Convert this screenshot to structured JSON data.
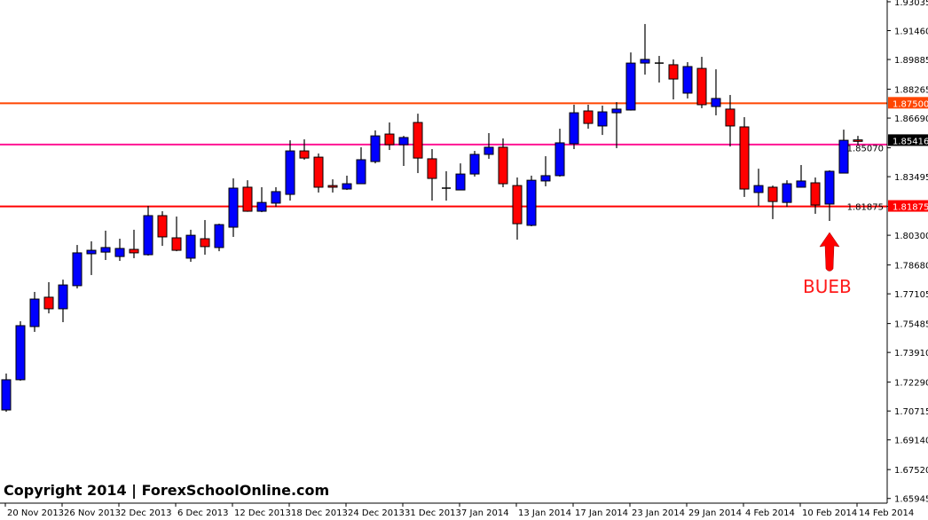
{
  "copyright": "Copyright 2014 | ForexSchoolOnline.com",
  "chart_data": {
    "type": "candlestick",
    "ylim": [
      1.6569,
      1.9313
    ],
    "grid": false,
    "bull_color": "#0000ff",
    "bear_color": "#ff0000",
    "y_ticks": [
      "1.93035",
      "1.91460",
      "1.89885",
      "1.88265",
      "1.86690",
      "1.85070",
      "1.83495",
      "1.81875",
      "1.80300",
      "1.78680",
      "1.77105",
      "1.75485",
      "1.73910",
      "1.72290",
      "1.70715",
      "1.69140",
      "1.67520",
      "1.65945"
    ],
    "x_tick_labels": [
      "20 Nov 2013",
      "26 Nov 2013",
      "2 Dec 2013",
      "6 Dec 2013",
      "12 Dec 2013",
      "18 Dec 2013",
      "24 Dec 2013",
      "31 Dec 2013",
      "7 Jan 2014",
      "13 Jan 2014",
      "17 Jan 2014",
      "23 Jan 2014",
      "29 Jan 2014",
      "4 Feb 2014",
      "10 Feb 2014",
      "14 Feb 2014"
    ],
    "ohlc": [
      [
        1.7077,
        1.7276,
        1.7067,
        1.7242
      ],
      [
        1.7242,
        1.7561,
        1.7237,
        1.7537
      ],
      [
        1.7532,
        1.7721,
        1.7503,
        1.7682
      ],
      [
        1.7692,
        1.7774,
        1.7604,
        1.7629
      ],
      [
        1.7629,
        1.7788,
        1.7556,
        1.7759
      ],
      [
        1.7755,
        1.7977,
        1.774,
        1.7934
      ],
      [
        1.7929,
        1.7997,
        1.7813,
        1.7948
      ],
      [
        1.7938,
        1.8055,
        1.7895,
        1.7963
      ],
      [
        1.7914,
        1.8011,
        1.789,
        1.7958
      ],
      [
        1.7953,
        1.806,
        1.7905,
        1.7934
      ],
      [
        1.7924,
        1.819,
        1.7919,
        1.8137
      ],
      [
        1.8137,
        1.8161,
        1.7972,
        1.8021
      ],
      [
        1.8016,
        1.8132,
        1.7943,
        1.7948
      ],
      [
        1.7905,
        1.806,
        1.7885,
        1.803
      ],
      [
        1.8011,
        1.8113,
        1.7924,
        1.7968
      ],
      [
        1.7963,
        1.8093,
        1.7943,
        1.8088
      ],
      [
        1.8074,
        1.834,
        1.8021,
        1.8287
      ],
      [
        1.8292,
        1.833,
        1.8158,
        1.8161
      ],
      [
        1.8161,
        1.8292,
        1.8156,
        1.8209
      ],
      [
        1.8205,
        1.8292,
        1.8185,
        1.8268
      ],
      [
        1.8253,
        1.8548,
        1.8219,
        1.849
      ],
      [
        1.849,
        1.8553,
        1.8442,
        1.8451
      ],
      [
        1.8456,
        1.8476,
        1.8263,
        1.8292
      ],
      [
        1.8301,
        1.8335,
        1.8263,
        1.8292
      ],
      [
        1.8282,
        1.8355,
        1.8277,
        1.8311
      ],
      [
        1.8311,
        1.851,
        1.8309,
        1.8442
      ],
      [
        1.8432,
        1.8602,
        1.8422,
        1.8572
      ],
      [
        1.8582,
        1.8645,
        1.8495,
        1.8524
      ],
      [
        1.8524,
        1.8572,
        1.8408,
        1.8563
      ],
      [
        1.8645,
        1.8693,
        1.8369,
        1.8451
      ],
      [
        1.8447,
        1.85,
        1.8219,
        1.834
      ],
      [
        1.8287,
        1.8379,
        1.8219,
        1.8287
      ],
      [
        1.8277,
        1.8422,
        1.8275,
        1.8364
      ],
      [
        1.8364,
        1.849,
        1.835,
        1.8471
      ],
      [
        1.8471,
        1.8587,
        1.8447,
        1.851
      ],
      [
        1.851,
        1.8558,
        1.8292,
        1.8311
      ],
      [
        1.8301,
        1.8345,
        1.8006,
        1.8093
      ],
      [
        1.8084,
        1.8355,
        1.8079,
        1.833
      ],
      [
        1.8326,
        1.8461,
        1.8297,
        1.8355
      ],
      [
        1.8355,
        1.8611,
        1.835,
        1.8534
      ],
      [
        1.8529,
        1.8742,
        1.85,
        1.8698
      ],
      [
        1.8708,
        1.8742,
        1.8611,
        1.864
      ],
      [
        1.8626,
        1.8737,
        1.8577,
        1.8703
      ],
      [
        1.8698,
        1.8756,
        1.8505,
        1.8718
      ],
      [
        1.8713,
        1.9027,
        1.871,
        1.8969
      ],
      [
        1.8969,
        1.9182,
        1.8906,
        1.8989
      ],
      [
        1.8969,
        1.9008,
        1.8863,
        1.8968
      ],
      [
        1.896,
        1.8989,
        1.8771,
        1.8882
      ],
      [
        1.8805,
        1.8974,
        1.8776,
        1.895
      ],
      [
        1.894,
        1.9003,
        1.8723,
        1.8742
      ],
      [
        1.8732,
        1.8935,
        1.8684,
        1.8776
      ],
      [
        1.8718,
        1.8795,
        1.8514,
        1.8626
      ],
      [
        1.8621,
        1.8674,
        1.8239,
        1.8282
      ],
      [
        1.8263,
        1.8393,
        1.819,
        1.8301
      ],
      [
        1.8292,
        1.8301,
        1.8118,
        1.8214
      ],
      [
        1.8209,
        1.833,
        1.8185,
        1.8311
      ],
      [
        1.8292,
        1.8413,
        1.829,
        1.8326
      ],
      [
        1.8316,
        1.8345,
        1.8147,
        1.8195
      ],
      [
        1.82,
        1.8384,
        1.8108,
        1.8379
      ],
      [
        1.8369,
        1.8606,
        1.8367,
        1.8548
      ],
      [
        1.855,
        1.8572,
        1.8524,
        1.8542
      ]
    ],
    "horizontal_lines": [
      {
        "price": 1.875,
        "label": "1.87500",
        "color": "#ff4500"
      },
      {
        "price": 1.8525,
        "label": "",
        "color": "#ff1493"
      },
      {
        "price": 1.81875,
        "label": "1.81875",
        "color": "#ff0000"
      }
    ],
    "current_price": {
      "label": "1.85416",
      "price": 1.85416
    },
    "annotations": [
      {
        "text": "BUEB",
        "color": "#ff1a1a",
        "icon": "arrow-up-icon"
      }
    ]
  }
}
